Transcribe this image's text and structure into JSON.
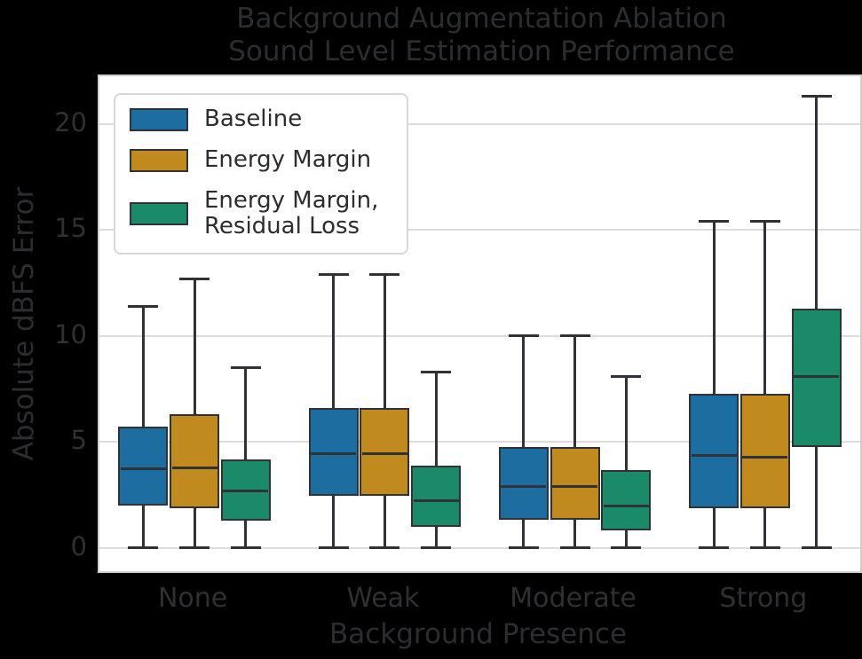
{
  "title": {
    "line1": "Background Augmentation Ablation",
    "line2": "Sound Level Estimation Performance"
  },
  "axes": {
    "ylabel": "Absolute dBFS Error",
    "xlabel": "Background Presence"
  },
  "legend": {
    "items": [
      {
        "lines": [
          "Baseline"
        ]
      },
      {
        "lines": [
          "Energy Margin"
        ]
      },
      {
        "lines": [
          "Energy Margin,",
          "Residual Loss"
        ]
      }
    ]
  },
  "colors": {
    "page_background": "#000000",
    "plot_background": "#ffffff",
    "grid": "#dcdcdc",
    "spine": "#cfcfcf",
    "text": "#2c2d31",
    "box_edge": "#2f3236",
    "baseline": "#1d6da1",
    "energy_margin": "#c18a1f",
    "energy_margin_residual": "#1a8a68"
  },
  "chart_data": {
    "type": "box",
    "title": "Background Augmentation Ablation\nSound Level Estimation Performance",
    "xlabel": "Background Presence",
    "ylabel": "Absolute dBFS Error",
    "categories": [
      "None",
      "Weak",
      "Moderate",
      "Strong"
    ],
    "yticks": [
      0,
      5,
      10,
      15,
      20
    ],
    "ylim": [
      -1.09,
      22.26
    ],
    "grid": "y-only",
    "legend_position": "upper-left",
    "series": [
      {
        "name": "Baseline",
        "color": "#1d6da1",
        "boxes": [
          {
            "whislo": 0,
            "q1": 2.0,
            "med": 3.75,
            "q3": 5.75,
            "whishi": 11.4
          },
          {
            "whislo": 0,
            "q1": 2.45,
            "med": 4.45,
            "q3": 6.6,
            "whishi": 12.9
          },
          {
            "whislo": 0,
            "q1": 1.35,
            "med": 2.9,
            "q3": 4.75,
            "whishi": 10.0
          },
          {
            "whislo": 0,
            "q1": 1.9,
            "med": 4.35,
            "q3": 7.3,
            "whishi": 15.4
          }
        ]
      },
      {
        "name": "Energy Margin",
        "color": "#c18a1f",
        "boxes": [
          {
            "whislo": 0,
            "q1": 1.9,
            "med": 3.8,
            "q3": 6.3,
            "whishi": 12.7
          },
          {
            "whislo": 0,
            "q1": 2.45,
            "med": 4.45,
            "q3": 6.6,
            "whishi": 12.9
          },
          {
            "whislo": 0,
            "q1": 1.35,
            "med": 2.9,
            "q3": 4.75,
            "whishi": 10.0
          },
          {
            "whislo": 0,
            "q1": 1.9,
            "med": 4.3,
            "q3": 7.3,
            "whishi": 15.4
          }
        ]
      },
      {
        "name": "Energy Margin, Residual Loss",
        "color": "#1a8a68",
        "boxes": [
          {
            "whislo": 0,
            "q1": 1.3,
            "med": 2.7,
            "q3": 4.2,
            "whishi": 8.5
          },
          {
            "whislo": 0,
            "q1": 1.0,
            "med": 2.25,
            "q3": 3.9,
            "whishi": 8.3
          },
          {
            "whislo": 0,
            "q1": 0.85,
            "med": 2.0,
            "q3": 3.7,
            "whishi": 8.1
          },
          {
            "whislo": 0,
            "q1": 4.75,
            "med": 8.1,
            "q3": 11.3,
            "whishi": 21.3
          }
        ]
      }
    ]
  }
}
